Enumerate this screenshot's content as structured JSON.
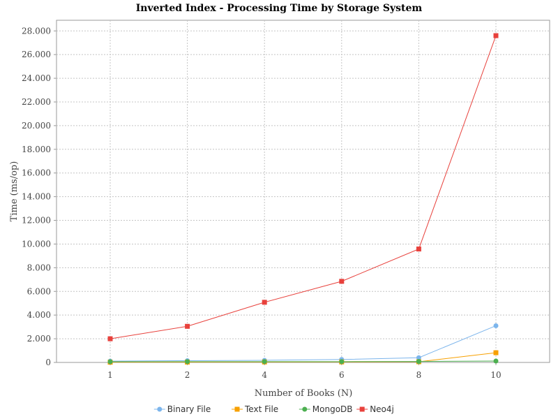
{
  "chart_data": {
    "type": "line",
    "title": "Inverted Index - Processing Time by Storage System",
    "xlabel": "Number of Books (N)",
    "ylabel": "Time (ms/op)",
    "categories": [
      "1",
      "2",
      "4",
      "6",
      "8",
      "10"
    ],
    "ylim": [
      0,
      28900
    ],
    "yticks": [
      0,
      2000,
      4000,
      6000,
      8000,
      10000,
      12000,
      14000,
      16000,
      18000,
      20000,
      22000,
      24000,
      26000,
      28000
    ],
    "ytick_labels": [
      "0",
      "2.000",
      "4.000",
      "6.000",
      "8.000",
      "10.000",
      "12.000",
      "14.000",
      "16.000",
      "18.000",
      "20.000",
      "22.000",
      "24.000",
      "26.000",
      "28.000"
    ],
    "grid": true,
    "legend_position": "bottom",
    "series": [
      {
        "name": "Binary File",
        "color": "#7cb5ec",
        "marker": "circle",
        "values": [
          110,
          150,
          180,
          250,
          400,
          3100
        ]
      },
      {
        "name": "Text File",
        "color": "#f7a000",
        "marker": "square",
        "values": [
          20,
          30,
          40,
          45,
          60,
          820
        ]
      },
      {
        "name": "MongoDB",
        "color": "#4caf50",
        "marker": "circle",
        "values": [
          60,
          70,
          70,
          70,
          80,
          120
        ]
      },
      {
        "name": "Neo4j",
        "color": "#e8413c",
        "marker": "square",
        "values": [
          2000,
          3050,
          5080,
          6850,
          9580,
          27600
        ]
      }
    ]
  }
}
